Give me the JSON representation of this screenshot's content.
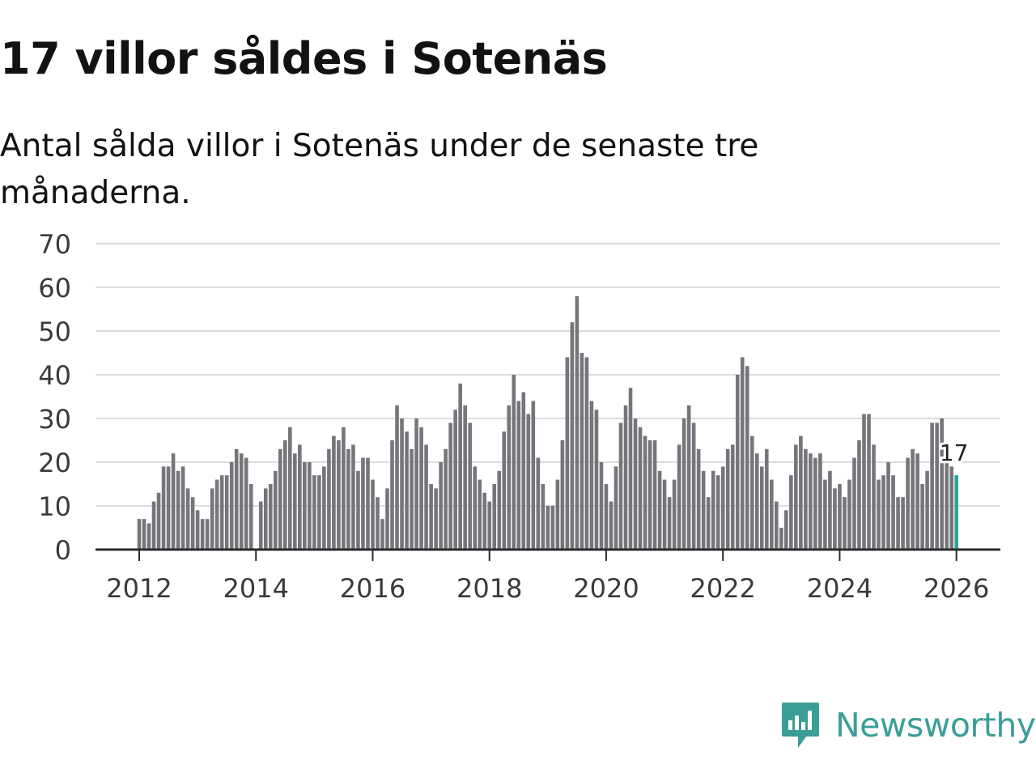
{
  "title": "17 villor såldes i Sotenäs",
  "subtitle": "Antal sålda villor i Sotenäs under de senaste tre månaderna.",
  "brand": {
    "name": "Newsworthy",
    "color": "#3a9e97"
  },
  "chart_data": {
    "type": "bar",
    "title": "17 villor såldes i Sotenäs",
    "subtitle": "Antal sålda villor i Sotenäs under de senaste tre månaderna.",
    "xlabel": "",
    "ylabel": "",
    "ylim": [
      0,
      70
    ],
    "yticks": [
      0,
      10,
      20,
      30,
      40,
      50,
      60,
      70
    ],
    "xticks": [
      "2012",
      "2014",
      "2016",
      "2018",
      "2020",
      "2022",
      "2024",
      "2026"
    ],
    "grid": true,
    "bar_color": "#76757b",
    "highlight_color": "#2aa59d",
    "start": "2012-01",
    "end": "2026-01",
    "frequency": "monthly",
    "values": [
      7,
      7,
      6,
      11,
      13,
      19,
      19,
      22,
      18,
      19,
      14,
      12,
      9,
      7,
      7,
      14,
      16,
      17,
      17,
      20,
      23,
      22,
      21,
      15,
      0,
      11,
      14,
      15,
      18,
      23,
      25,
      28,
      22,
      24,
      20,
      20,
      17,
      17,
      19,
      23,
      26,
      25,
      28,
      23,
      24,
      18,
      21,
      21,
      16,
      12,
      7,
      14,
      25,
      33,
      30,
      27,
      23,
      30,
      28,
      24,
      15,
      14,
      20,
      23,
      29,
      32,
      38,
      33,
      29,
      19,
      16,
      13,
      11,
      15,
      18,
      27,
      33,
      40,
      34,
      36,
      31,
      34,
      21,
      15,
      10,
      10,
      16,
      25,
      44,
      52,
      58,
      45,
      44,
      34,
      32,
      20,
      15,
      11,
      19,
      29,
      33,
      37,
      30,
      28,
      26,
      25,
      25,
      18,
      16,
      12,
      16,
      24,
      30,
      33,
      29,
      23,
      18,
      12,
      18,
      17,
      19,
      23,
      24,
      40,
      44,
      42,
      26,
      22,
      19,
      23,
      16,
      11,
      5,
      9,
      17,
      24,
      26,
      23,
      22,
      21,
      22,
      16,
      18,
      14,
      15,
      12,
      16,
      21,
      25,
      31,
      31,
      24,
      16,
      17,
      20,
      17,
      12,
      12,
      21,
      23,
      22,
      15,
      18,
      29,
      29,
      30,
      20,
      19,
      17
    ],
    "last_value_label": "17"
  }
}
